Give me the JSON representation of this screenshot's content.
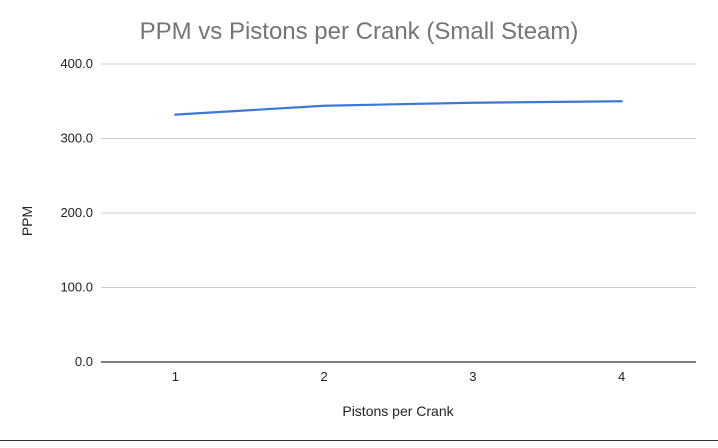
{
  "chart_data": {
    "type": "line",
    "title": "PPM vs Pistons per Crank (Small Steam)",
    "xlabel": "Pistons per Crank",
    "ylabel": "PPM",
    "categories": [
      "1",
      "2",
      "3",
      "4"
    ],
    "series": [
      {
        "values": [
          332,
          344,
          348,
          350
        ],
        "color": "#3c78d8"
      }
    ],
    "ylim": [
      0,
      400
    ],
    "yticks": [
      "0.0",
      "100.0",
      "200.0",
      "300.0",
      "400.0"
    ],
    "grid": true,
    "legend": "none"
  }
}
